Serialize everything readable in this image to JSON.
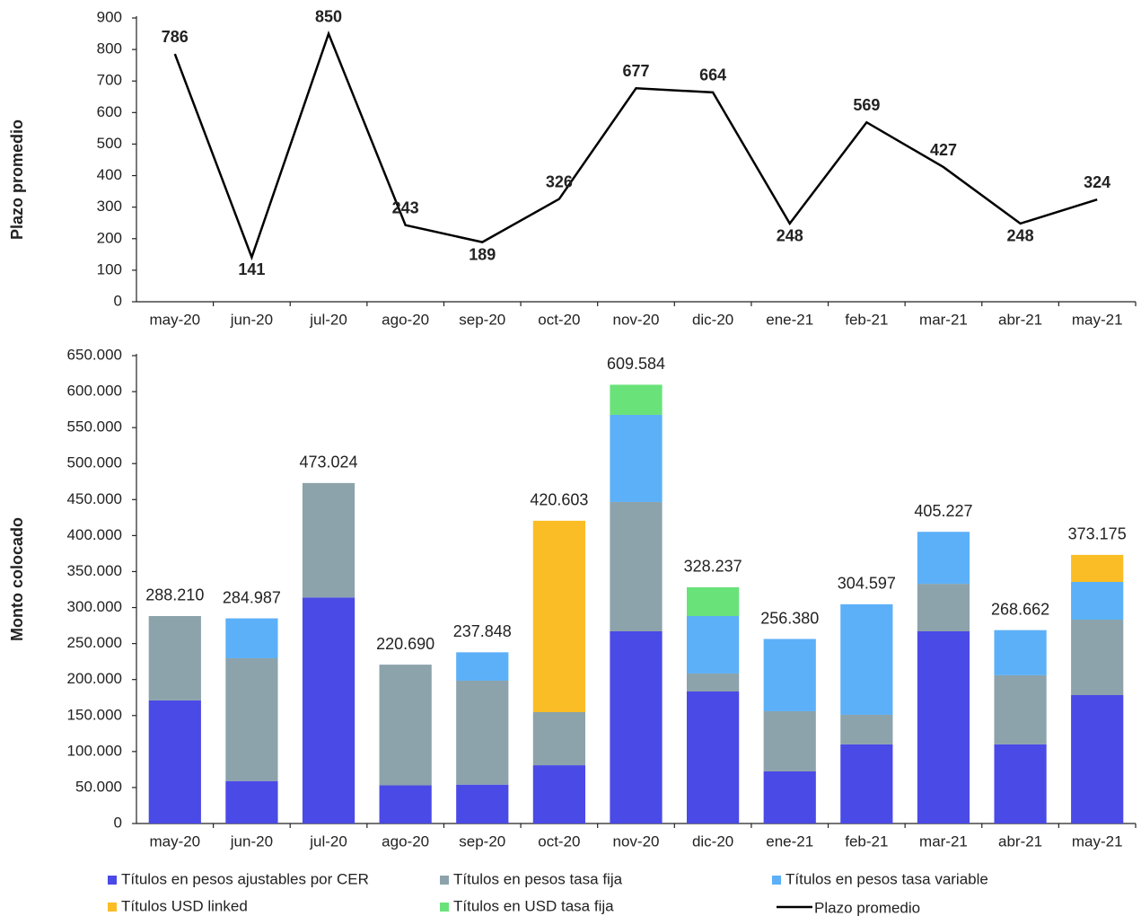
{
  "chart_data": [
    {
      "type": "line",
      "y_label": "Plazo promedio",
      "categories": [
        "may-20",
        "jun-20",
        "jul-20",
        "ago-20",
        "sep-20",
        "oct-20",
        "nov-20",
        "dic-20",
        "ene-21",
        "feb-21",
        "mar-21",
        "abr-21",
        "may-21"
      ],
      "series": [
        {
          "name": "Plazo promedio",
          "color": "#000000",
          "values": [
            786,
            141,
            850,
            243,
            189,
            326,
            677,
            664,
            248,
            569,
            427,
            248,
            324
          ]
        }
      ],
      "ylim": [
        0,
        900
      ],
      "yticks": [
        0,
        100,
        200,
        300,
        400,
        500,
        600,
        700,
        800,
        900
      ]
    },
    {
      "type": "stacked_bar",
      "y_label": "Monto colocado",
      "categories": [
        "may-20",
        "jun-20",
        "jul-20",
        "ago-20",
        "sep-20",
        "oct-20",
        "nov-20",
        "dic-20",
        "ene-21",
        "feb-21",
        "mar-21",
        "abr-21",
        "may-21"
      ],
      "series": [
        {
          "name": "Títulos en pesos ajustables por CER",
          "color": "#4a4ae6",
          "values": [
            171000,
            59000,
            314000,
            53000,
            54000,
            81000,
            267000,
            183400,
            72400,
            110000,
            267000,
            110000,
            178400
          ]
        },
        {
          "name": "Títulos en pesos tasa fija",
          "color": "#8ca3ab",
          "values": [
            117210,
            170600,
            159024,
            167690,
            144400,
            73700,
            179700,
            25000,
            83600,
            41000,
            66000,
            96000,
            104800
          ]
        },
        {
          "name": "Títulos en pesos tasa variable",
          "color": "#5cb0f8",
          "values": [
            null,
            55387,
            null,
            null,
            39448,
            null,
            121000,
            79800,
            100380,
            153597,
            72227,
            62662,
            52400
          ]
        },
        {
          "name": "Títulos USD linked",
          "color": "#fbbd25",
          "values": [
            null,
            null,
            null,
            null,
            null,
            265903,
            null,
            null,
            null,
            null,
            null,
            null,
            37575
          ]
        },
        {
          "name": "Títulos en USD tasa fija",
          "color": "#69e27a",
          "values": [
            null,
            null,
            null,
            null,
            null,
            null,
            41884,
            40037,
            null,
            null,
            null,
            null,
            null
          ]
        }
      ],
      "values": [
        288210,
        284987,
        473024,
        220690,
        237848,
        420603,
        609584,
        328237,
        256380,
        304597,
        405227,
        268662,
        373175
      ],
      "value_labels": [
        "288.210",
        "284.987",
        "473.024",
        "220.690",
        "237.848",
        "420.603",
        "609.584",
        "328.237",
        "256.380",
        "304.597",
        "405.227",
        "268.662",
        "373.175"
      ],
      "ylim": [
        0,
        650000
      ],
      "yticks": [
        {
          "value": 0,
          "label": "0"
        },
        {
          "value": 50000,
          "label": "50.000"
        },
        {
          "value": 100000,
          "label": "100.000"
        },
        {
          "value": 150000,
          "label": "150.000"
        },
        {
          "value": 200000,
          "label": "200.000"
        },
        {
          "value": 250000,
          "label": "250.000"
        },
        {
          "value": 300000,
          "label": "300.000"
        },
        {
          "value": 350000,
          "label": "350.000"
        },
        {
          "value": 400000,
          "label": "400.000"
        },
        {
          "value": 450000,
          "label": "450.000"
        },
        {
          "value": 500000,
          "label": "500.000"
        },
        {
          "value": 550000,
          "label": "550.000"
        },
        {
          "value": 600000,
          "label": "600.000"
        },
        {
          "value": 650000,
          "label": "650.000"
        }
      ]
    }
  ]
}
